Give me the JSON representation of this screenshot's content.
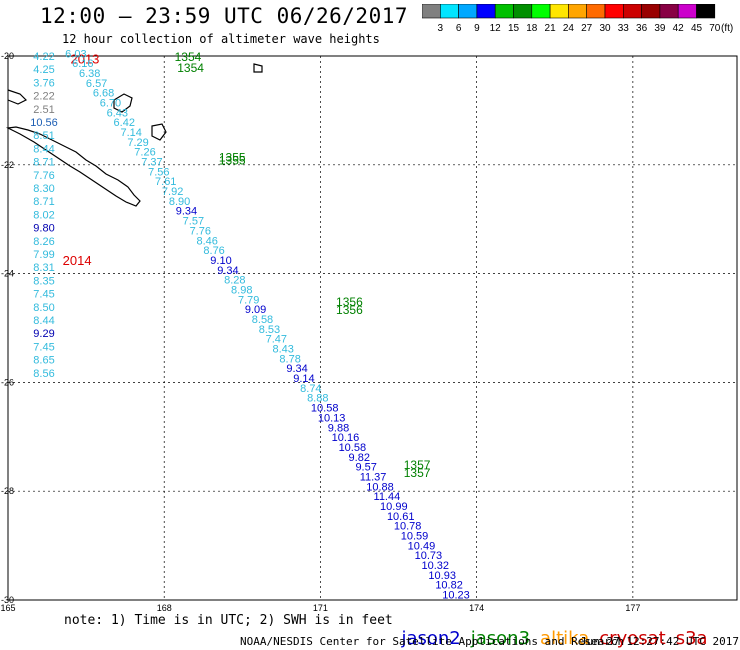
{
  "header": {
    "title": "12:00 – 23:59 UTC 06/26/2017",
    "subtitle": "12 hour collection of altimeter wave heights"
  },
  "colorbar": {
    "labels": [
      "3",
      "6",
      "9",
      "12",
      "15",
      "18",
      "21",
      "24",
      "27",
      "30",
      "33",
      "36",
      "39",
      "42",
      "45",
      "70",
      "(ft)"
    ],
    "colors": [
      "#808080",
      "#00e5ff",
      "#00a8ff",
      "#0000ff",
      "#00c000",
      "#008f00",
      "#00ff00",
      "#ffe600",
      "#ffa500",
      "#ff6a00",
      "#ff0000",
      "#cc0000",
      "#990000",
      "#880044",
      "#cc00cc",
      "#000000"
    ]
  },
  "map": {
    "lon_min": 165,
    "lon_max": 179,
    "lat_min": -30,
    "lat_max": -20,
    "lon_ticks": [
      "165",
      "168",
      "171",
      "174",
      "177"
    ],
    "lat_ticks": [
      "-20",
      "-22",
      "-24",
      "-26",
      "-28",
      "-30"
    ]
  },
  "years": [
    {
      "label": "2013",
      "lon": 166.2,
      "lat": -20.05
    },
    {
      "label": "2014",
      "lon": 166.05,
      "lat": -23.75
    }
  ],
  "revs": [
    {
      "label": "1354",
      "lon": 168.2,
      "lat": -20.0
    },
    {
      "label": "1354",
      "lon": 168.25,
      "lat": -20.2
    },
    {
      "label": "1355",
      "lon": 169.05,
      "lat": -21.85
    },
    {
      "label": "1355",
      "lon": 169.05,
      "lat": -21.9
    },
    {
      "label": "1356",
      "lon": 171.3,
      "lat": -24.5
    },
    {
      "label": "1356",
      "lon": 171.3,
      "lat": -24.65
    },
    {
      "label": "1357",
      "lon": 172.6,
      "lat": -27.5
    },
    {
      "label": "1357",
      "lon": 172.6,
      "lat": -27.65
    }
  ],
  "labels": {
    "note": "note: 1) Time is in UTC; 2) SWH is in feet",
    "credit": "NOAA/NESDIS Center for Satellite Applications and Research",
    "timestamp": "Jun 27 12:27:42 UTC 2017"
  },
  "satellites": [
    {
      "name": "jason2",
      "color": "#0000cc"
    },
    {
      "name": "jason3",
      "color": "#008000"
    },
    {
      "name": "altika",
      "color": "#ff9900"
    },
    {
      "name": "cryosat",
      "color": "#cc0000"
    },
    {
      "name": "s3a",
      "color": "#cc0000"
    }
  ],
  "swh_west": [
    {
      "v": "4.22",
      "c": "#33bbdd"
    },
    {
      "v": "4.25",
      "c": "#33bbdd"
    },
    {
      "v": "3.76",
      "c": "#33bbdd"
    },
    {
      "v": "2.22",
      "c": "#808080"
    },
    {
      "v": "2.51",
      "c": "#808080"
    },
    {
      "v": "10.56",
      "c": "#1e5fb4"
    },
    {
      "v": "8.51",
      "c": "#33bbdd"
    },
    {
      "v": "8.44",
      "c": "#33bbdd"
    },
    {
      "v": "8.71",
      "c": "#33bbdd"
    },
    {
      "v": "7.76",
      "c": "#33bbdd"
    },
    {
      "v": "8.30",
      "c": "#33bbdd"
    },
    {
      "v": "8.71",
      "c": "#33bbdd"
    },
    {
      "v": "8.02",
      "c": "#33bbdd"
    },
    {
      "v": "9.80",
      "c": "#0000b0"
    },
    {
      "v": "8.26",
      "c": "#33bbdd"
    },
    {
      "v": "7.99",
      "c": "#33bbdd"
    },
    {
      "v": "8.31",
      "c": "#33bbdd"
    },
    {
      "v": "8.35",
      "c": "#33bbdd"
    },
    {
      "v": "7.45",
      "c": "#33bbdd"
    },
    {
      "v": "8.50",
      "c": "#33bbdd"
    },
    {
      "v": "8.44",
      "c": "#33bbdd"
    },
    {
      "v": "9.29",
      "c": "#0000b0"
    },
    {
      "v": "7.45",
      "c": "#33bbdd"
    },
    {
      "v": "8.65",
      "c": "#33bbdd"
    },
    {
      "v": "8.56",
      "c": "#33bbdd"
    }
  ],
  "swh_track": [
    "6.03",
    "6.16",
    "6.38",
    "6.57",
    "6.68",
    "6.70",
    "6.43",
    "6.42",
    "7.14",
    "7.29",
    "7.26",
    "7.37",
    "7.56",
    "7.61",
    "7.92",
    "8.90",
    "9.34",
    "7.57",
    "7.76",
    "8.46",
    "8.76",
    "9.10",
    "9.34",
    "8.28",
    "8.98",
    "7.79",
    "9.09",
    "8.58",
    "8.53",
    "7.47",
    "8.43",
    "8.78",
    "9.34",
    "9.14",
    "8.74",
    "8.88",
    "10.58",
    "10.13",
    "9.88",
    "10.16",
    "10.58",
    "9.82",
    "9.57",
    "11.37",
    "10.88",
    "11.44",
    "10.99",
    "10.61",
    "10.78",
    "10.59",
    "10.49",
    "10.73",
    "10.32",
    "10.93",
    "10.82",
    "10.23"
  ]
}
